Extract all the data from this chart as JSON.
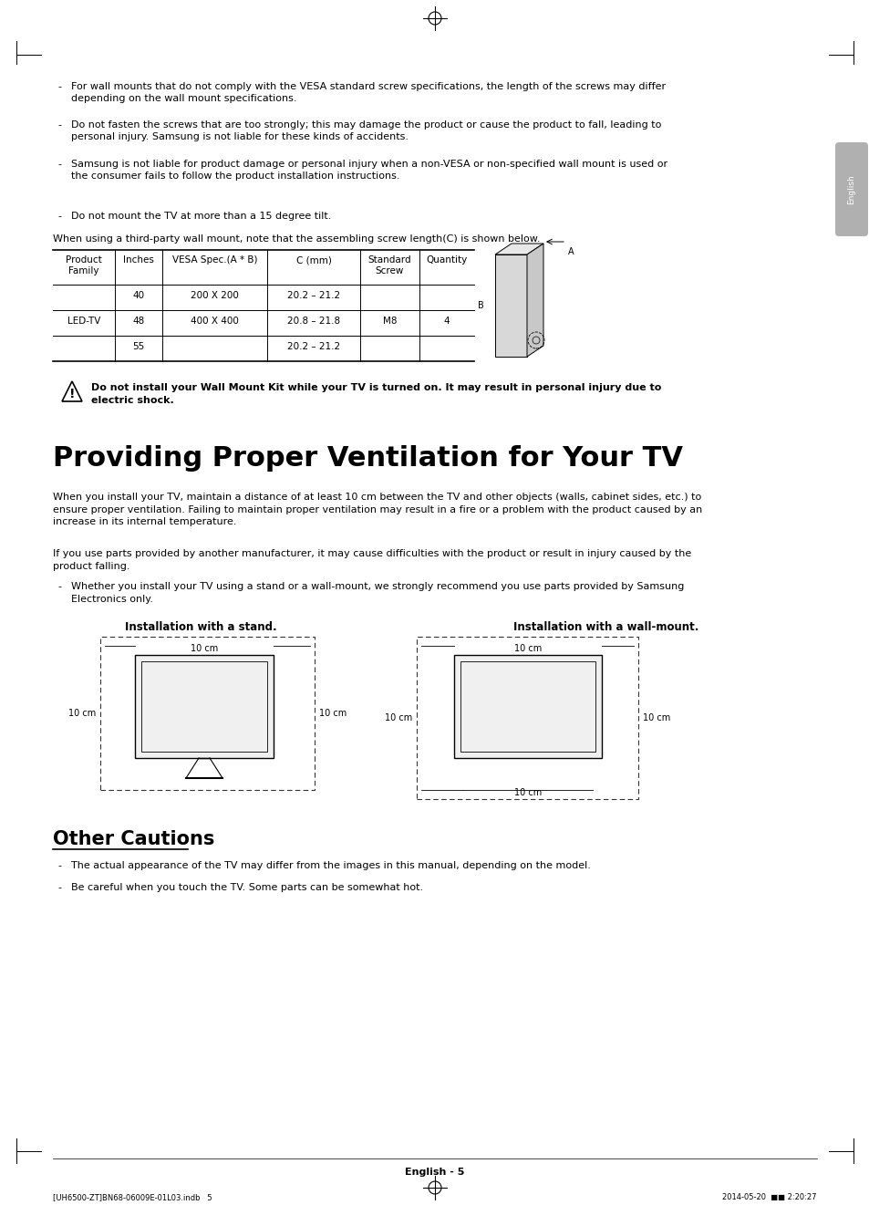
{
  "bg_color": "#ffffff",
  "bullet_points_top": [
    "For wall mounts that do not comply with the VESA standard screw specifications, the length of the screws may differ\ndepending on the wall mount specifications.",
    "Do not fasten the screws that are too strongly; this may damage the product or cause the product to fall, leading to\npersonal injury. Samsung is not liable for these kinds of accidents.",
    "Samsung is not liable for product damage or personal injury when a non-VESA or non-specified wall mount is used or\nthe consumer fails to follow the product installation instructions.",
    "Do not mount the TV at more than a 15 degree tilt."
  ],
  "table_intro": "When using a third-party wall mount, note that the assembling screw length(C) is shown below.",
  "table_headers": [
    "Product\nFamily",
    "Inches",
    "VESA Spec.(A * B)",
    "C (mm)",
    "Standard\nScrew",
    "Quantity"
  ],
  "table_rows": [
    [
      "",
      "40",
      "200 X 200",
      "20.2 – 21.2",
      "",
      ""
    ],
    [
      "LED-TV",
      "48",
      "400 X 400",
      "20.8 – 21.8",
      "M8",
      "4"
    ],
    [
      "",
      "55",
      "",
      "20.2 – 21.2",
      "",
      ""
    ]
  ],
  "warning_text": "Do not install your Wall Mount Kit while your TV is turned on. It may result in personal injury due to\nelectric shock.",
  "section1_title": "Providing Proper Ventilation for Your TV",
  "section1_para1": "When you install your TV, maintain a distance of at least 10 cm between the TV and other objects (walls, cabinet sides, etc.) to\nensure proper ventilation. Failing to maintain proper ventilation may result in a fire or a problem with the product caused by an\nincrease in its internal temperature.",
  "section1_para2": "If you use parts provided by another manufacturer, it may cause difficulties with the product or result in injury caused by the\nproduct falling.",
  "section1_bullet": "Whether you install your TV using a stand or a wall-mount, we strongly recommend you use parts provided by Samsung\nElectronics only.",
  "diagram_stand_label": "Installation with a stand.",
  "diagram_wall_label": "Installation with a wall-mount.",
  "section2_title": "Other Cautions",
  "section2_bullets": [
    "The actual appearance of the TV may differ from the images in this manual, depending on the model.",
    "Be careful when you touch the TV. Some parts can be somewhat hot."
  ],
  "footer_text": "English - 5",
  "footer_bottom": "[UH6500-ZT]BN68-06009E-01L03.indb   5",
  "footer_right": "2014-05-20  ■■ 2:20:27",
  "text_color": "#000000",
  "body_font_size": 8.0,
  "title1_font_size": 22,
  "title2_font_size": 15
}
